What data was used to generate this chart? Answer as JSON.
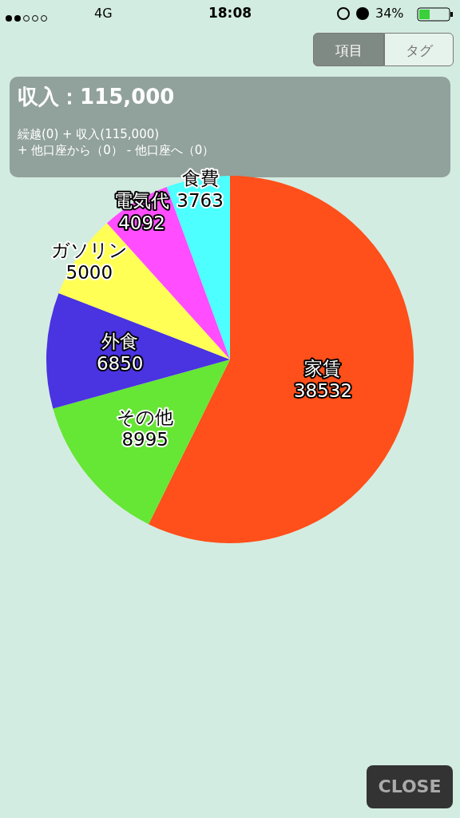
{
  "chart_data": {
    "type": "pie",
    "title": "収入：115,000",
    "subtitle": "繰越(0) + 収入(115,000)\n+ 他口座から（0） - 他口座へ（0）",
    "categories": [
      "家賃",
      "その他",
      "外食",
      "ガソリン",
      "電気代",
      "食費"
    ],
    "values": [
      38532,
      8995,
      6850,
      5000,
      4092,
      3763
    ],
    "colors": [
      "#ff4f1a",
      "#66e635",
      "#4a33e0",
      "#ffff55",
      "#ff4dff",
      "#4dffff"
    ],
    "data_labels": true,
    "legend": false,
    "annotations": [
      "4G",
      "18:08",
      "34%",
      "項目",
      "タグ",
      "CLOSE"
    ]
  }
}
